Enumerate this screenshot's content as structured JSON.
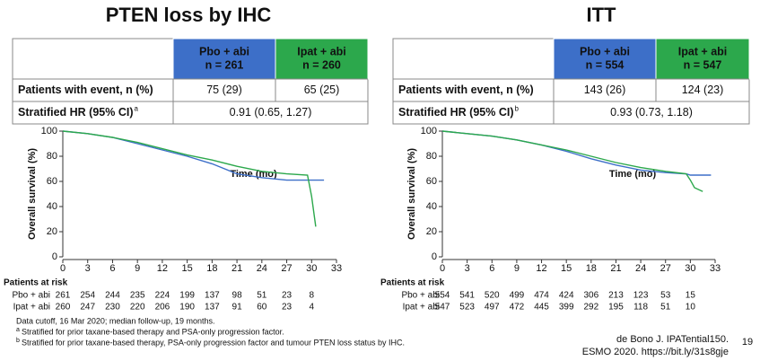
{
  "chart_data": [
    {
      "type": "line",
      "title": "PTEN loss by IHC",
      "x_label": "Time (mo)",
      "y_label": "Overall survival (%)",
      "x": [
        0,
        3,
        6,
        9,
        12,
        15,
        18,
        21,
        24,
        27,
        29.5,
        30,
        30.5,
        31.5
      ],
      "series": [
        {
          "name": "Pbo + abi",
          "color": "#3d6fc8",
          "values": [
            100,
            98,
            95,
            90,
            85,
            80,
            74,
            66,
            63,
            61,
            61,
            61,
            61,
            61
          ]
        },
        {
          "name": "Ipat + abi",
          "color": "#2ca84c",
          "values": [
            100,
            98,
            95,
            91,
            86,
            81,
            77,
            72,
            68,
            66,
            65,
            48,
            24,
            null
          ]
        }
      ],
      "xlim": [
        0,
        33
      ],
      "xticks": [
        0,
        3,
        6,
        9,
        12,
        15,
        18,
        21,
        24,
        27,
        30,
        33
      ],
      "ylim": [
        0,
        100
      ],
      "yticks": [
        0,
        20,
        40,
        60,
        80,
        100
      ],
      "table": {
        "header": [
          "n = 261",
          "n = 260"
        ],
        "rows": [
          {
            "label": "Patients with event, n (%)",
            "cells": [
              "75 (29)",
              "65 (25)"
            ]
          },
          {
            "label": "Stratified HR (95% CI)",
            "note": "a",
            "cells": [
              "0.91 (0.65, 1.27)"
            ]
          }
        ]
      },
      "at_risk": {
        "title": "Patients at risk",
        "rows": [
          [
            261,
            254,
            244,
            235,
            224,
            199,
            137,
            98,
            51,
            23,
            8
          ],
          [
            260,
            247,
            230,
            220,
            206,
            190,
            137,
            91,
            60,
            23,
            4
          ]
        ]
      }
    },
    {
      "type": "line",
      "title": "ITT",
      "x_label": "Time (mo)",
      "y_label": "Overall survival (%)",
      "x": [
        0,
        3,
        6,
        9,
        12,
        15,
        18,
        21,
        24,
        27,
        29.5,
        30,
        30.5,
        31.5,
        32.5
      ],
      "series": [
        {
          "name": "Pbo + abi",
          "color": "#3d6fc8",
          "values": [
            100,
            98,
            96,
            93,
            89,
            84,
            78,
            73,
            69,
            67,
            66,
            65,
            65,
            65,
            65
          ]
        },
        {
          "name": "Ipat + abi",
          "color": "#2ca84c",
          "values": [
            100,
            98,
            96,
            93,
            89,
            85,
            80,
            75,
            71,
            68,
            66,
            61,
            55,
            52,
            null
          ]
        }
      ],
      "xlim": [
        0,
        33
      ],
      "xticks": [
        0,
        3,
        6,
        9,
        12,
        15,
        18,
        21,
        24,
        27,
        30,
        33
      ],
      "ylim": [
        0,
        100
      ],
      "yticks": [
        0,
        20,
        40,
        60,
        80,
        100
      ],
      "table": {
        "header": [
          "n = 554",
          "n = 547"
        ],
        "rows": [
          {
            "label": "Patients with event, n (%)",
            "cells": [
              "143 (26)",
              "124 (23)"
            ]
          },
          {
            "label": "Stratified HR (95% CI)",
            "note": "b",
            "cells": [
              "0.93 (0.73, 1.18)"
            ]
          }
        ]
      },
      "at_risk": {
        "title": "Patients at risk",
        "rows": [
          [
            554,
            541,
            520,
            499,
            474,
            424,
            306,
            213,
            123,
            53,
            15
          ],
          [
            547,
            523,
            497,
            472,
            445,
            399,
            292,
            195,
            118,
            51,
            10
          ]
        ]
      }
    }
  ],
  "footnotes": [
    {
      "text": "Data cutoff, 16 Mar 2020; median follow-up, 19 months."
    },
    {
      "mark": "a",
      "text": "Stratified for prior taxane-based therapy and PSA-only progression factor."
    },
    {
      "mark": "b",
      "text": "Stratified for prior taxane-based therapy, PSA-only progression factor and tumour PTEN loss status by IHC."
    }
  ],
  "citation": [
    "de Bono J. IPATential150.",
    "ESMO 2020. https://bit.ly/31s8gje"
  ],
  "page_number": "19"
}
